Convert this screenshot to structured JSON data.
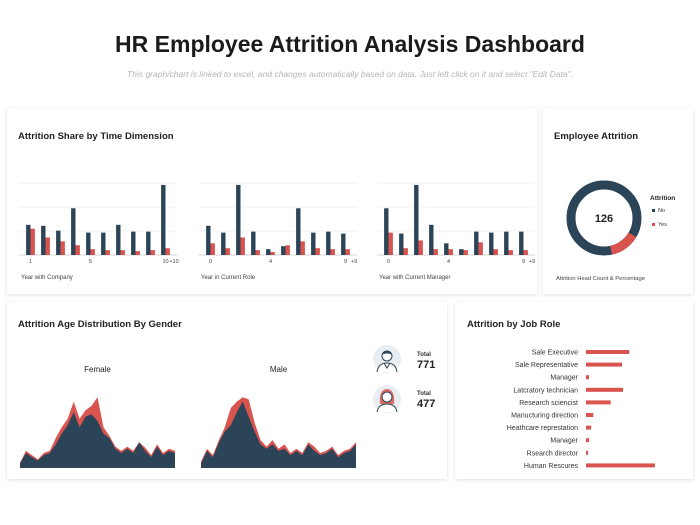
{
  "header": {
    "title": "HR Employee Attrition Analysis Dashboard",
    "subtitle": "This graph/chart is linked to excel, and changes automatically based on data. Just left click on it and select \"Edit Data\"."
  },
  "colors": {
    "navy": "#2c4457",
    "red": "#d9534f",
    "grid": "#dddddd"
  },
  "time_panel": {
    "title": "Attrition Share by Time Dimension"
  },
  "donut_panel": {
    "title": "Employee Attrition"
  },
  "age_panel": {
    "title": "Attrition Age Distribution By Gender"
  },
  "role_panel": {
    "title": "Attrition by Job Role"
  },
  "people": {
    "male": {
      "icon": "male-avatar-icon",
      "label": "Total",
      "value": "771"
    },
    "female": {
      "icon": "female-avatar-icon",
      "label": "Total",
      "value": "477"
    }
  },
  "chart_data": [
    {
      "id": "company",
      "type": "bar",
      "xlabel": "Year with Company",
      "ticks": [
        {
          "i": 0,
          "label": "1"
        },
        {
          "i": 4,
          "label": "5"
        },
        {
          "i": 9,
          "label": "10"
        },
        {
          "i": 10,
          "label": "+10"
        }
      ],
      "series": [
        {
          "name": "No",
          "values": [
            31,
            30,
            25,
            48,
            23,
            23,
            31,
            24,
            24,
            72
          ]
        },
        {
          "name": "Yes",
          "values": [
            27,
            18,
            14,
            10,
            6,
            5,
            5,
            4,
            5,
            7
          ]
        }
      ],
      "ylim": [
        0,
        75
      ]
    },
    {
      "id": "role",
      "type": "bar",
      "xlabel": "Year in Current Role",
      "ticks": [
        {
          "i": 0,
          "label": "0"
        },
        {
          "i": 4,
          "label": "4"
        },
        {
          "i": 9,
          "label": "9"
        },
        {
          "i": 10,
          "label": "+9"
        }
      ],
      "series": [
        {
          "name": "No",
          "values": [
            30,
            23,
            72,
            24,
            6,
            9,
            48,
            23,
            24,
            22
          ]
        },
        {
          "name": "Yes",
          "values": [
            12,
            7,
            18,
            5,
            3,
            10,
            14,
            7,
            6,
            6
          ]
        }
      ],
      "ylim": [
        0,
        75
      ]
    },
    {
      "id": "manager",
      "type": "bar",
      "xlabel": "Year with Current Manager",
      "ticks": [
        {
          "i": 0,
          "label": "0"
        },
        {
          "i": 4,
          "label": "4"
        },
        {
          "i": 9,
          "label": "9"
        },
        {
          "i": 10,
          "label": "+9"
        }
      ],
      "series": [
        {
          "name": "No",
          "values": [
            48,
            22,
            72,
            31,
            12,
            6,
            24,
            23,
            24,
            24
          ]
        },
        {
          "name": "Yes",
          "values": [
            23,
            7,
            15,
            6,
            6,
            5,
            13,
            6,
            5,
            5
          ]
        }
      ],
      "ylim": [
        0,
        75
      ]
    },
    {
      "id": "attrition_donut",
      "type": "pie",
      "title": "Attrition",
      "center_label": "126",
      "caption": "Attrition  Head Count & Percentage",
      "legend": [
        "No",
        "Yes"
      ],
      "values": [
        87,
        13
      ]
    },
    {
      "id": "female_age",
      "type": "area",
      "title": "Female",
      "series": [
        {
          "name": "Yes",
          "values": [
            5,
            16,
            12,
            8,
            14,
            16,
            28,
            38,
            46,
            62,
            46,
            54,
            58,
            66,
            38,
            30,
            20,
            16,
            20,
            16,
            24,
            19,
            12,
            22,
            14,
            18,
            16
          ]
        },
        {
          "name": "No",
          "values": [
            4,
            14,
            10,
            7,
            12,
            14,
            22,
            32,
            40,
            52,
            38,
            48,
            50,
            44,
            32,
            28,
            18,
            14,
            18,
            14,
            24,
            16,
            10,
            20,
            12,
            16,
            14
          ]
        }
      ]
    },
    {
      "id": "male_age",
      "type": "area",
      "title": "Male",
      "series": [
        {
          "name": "Yes",
          "values": [
            6,
            18,
            12,
            26,
            38,
            56,
            62,
            66,
            64,
            42,
            26,
            20,
            26,
            18,
            22,
            14,
            18,
            14,
            24,
            20,
            14,
            16,
            20,
            12,
            16,
            18,
            24
          ]
        },
        {
          "name": "No",
          "values": [
            4,
            16,
            10,
            24,
            34,
            40,
            52,
            62,
            48,
            34,
            22,
            18,
            22,
            16,
            18,
            12,
            16,
            12,
            22,
            16,
            12,
            14,
            18,
            10,
            14,
            16,
            22
          ]
        }
      ]
    },
    {
      "id": "job_role",
      "type": "bar",
      "orientation": "horizontal",
      "categories": [
        "Sale Executive",
        "Sale Representative",
        "Manager",
        "Latcratory technician",
        "Research sciencist",
        "Manucturing direction",
        "Heathcare represtation",
        "Manager",
        "Rsearch director",
        "Human Rescures"
      ],
      "values": [
        42,
        35,
        3,
        36,
        24,
        7,
        5,
        3,
        2,
        67
      ],
      "xlim": [
        0,
        70
      ]
    }
  ]
}
